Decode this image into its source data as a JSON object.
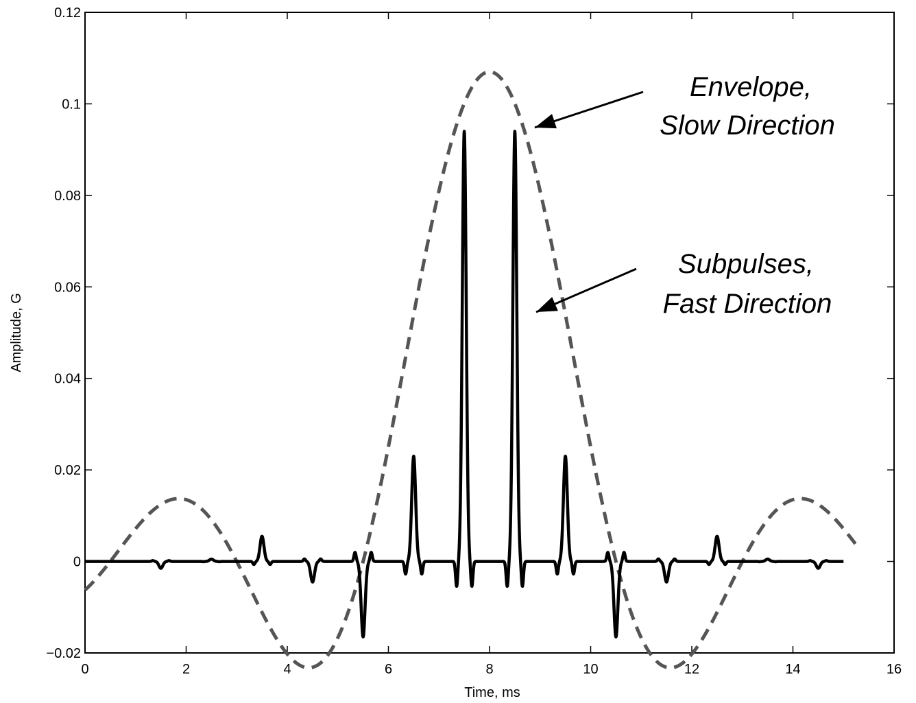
{
  "chart_data": {
    "type": "line",
    "title": "",
    "xlabel": "Time, ms",
    "ylabel": "Amplitude, G",
    "xlim": [
      0,
      16
    ],
    "ylim": [
      -0.02,
      0.12
    ],
    "xticks": [
      0,
      2,
      4,
      6,
      8,
      10,
      12,
      14,
      16
    ],
    "xtick_labels": [
      "0",
      "2",
      "4",
      "6",
      "8",
      "10",
      "12",
      "14",
      "16"
    ],
    "yticks": [
      -0.02,
      0,
      0.02,
      0.04,
      0.06,
      0.08,
      0.1,
      0.12
    ],
    "ytick_labels": [
      "−0.02",
      "0",
      "0.02",
      "0.04",
      "0.06",
      "0.08",
      "0.1",
      "0.12"
    ],
    "grid": false,
    "series": [
      {
        "style": "dashed",
        "color": "#555555",
        "envelope": {
          "center": 8.0,
          "amplitude": 0.107,
          "half_zero_width": 2.5,
          "x_start": 0.0,
          "x_end": 15.3
        }
      },
      {
        "style": "solid",
        "color": "#000000",
        "pulses": [
          {
            "x": 1.5,
            "y": -0.0015
          },
          {
            "x": 2.5,
            "y": 0.0005
          },
          {
            "x": 3.5,
            "y": 0.0055
          },
          {
            "x": 4.5,
            "y": -0.0045
          },
          {
            "x": 5.5,
            "y": -0.0165
          },
          {
            "x": 6.5,
            "y": 0.023
          },
          {
            "x": 7.5,
            "y": 0.094
          },
          {
            "x": 8.5,
            "y": 0.094
          },
          {
            "x": 9.5,
            "y": 0.023
          },
          {
            "x": 10.5,
            "y": -0.0165
          },
          {
            "x": 11.5,
            "y": -0.0045
          },
          {
            "x": 12.5,
            "y": 0.0055
          },
          {
            "x": 13.5,
            "y": 0.0005
          },
          {
            "x": 14.5,
            "y": -0.0015
          }
        ],
        "negative_spikes": [
          {
            "x": 7.35,
            "y": -0.0055
          },
          {
            "x": 7.65,
            "y": -0.0055
          },
          {
            "x": 8.35,
            "y": -0.0055
          },
          {
            "x": 8.65,
            "y": -0.0055
          }
        ],
        "x_start": 0.0,
        "x_end": 15.0
      }
    ],
    "annotations": [
      {
        "lines": [
          "Envelope,",
          "Slow Direction"
        ],
        "arrow_to": {
          "x": 8.58,
          "y": 0.093
        }
      },
      {
        "lines": [
          "Subpulses,",
          "Fast Direction"
        ],
        "arrow_to": {
          "x": 8.62,
          "y": 0.054
        }
      }
    ]
  }
}
